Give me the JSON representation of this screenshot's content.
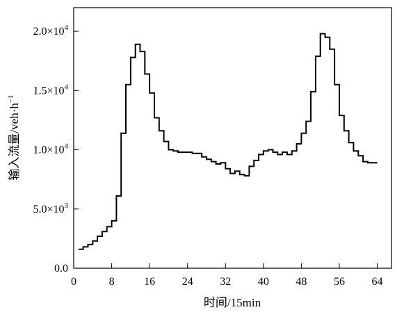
{
  "chart_data": {
    "type": "line",
    "style": "step",
    "title": "",
    "xlabel": "时间/15min",
    "ylabel": "输入流量/veh·h",
    "ylabel_superscript": "−1",
    "xlim": [
      0,
      67
    ],
    "ylim": [
      0,
      22000
    ],
    "x_ticks": [
      {
        "value": 0,
        "label": "0"
      },
      {
        "value": 8,
        "label": "8"
      },
      {
        "value": 16,
        "label": "16"
      },
      {
        "value": 24,
        "label": "24"
      },
      {
        "value": 32,
        "label": "32"
      },
      {
        "value": 40,
        "label": "40"
      },
      {
        "value": 48,
        "label": "48"
      },
      {
        "value": 56,
        "label": "56"
      },
      {
        "value": 64,
        "label": "64"
      }
    ],
    "y_ticks": [
      {
        "value": 0,
        "mantissa": "0.0",
        "exponent": ""
      },
      {
        "value": 5000,
        "mantissa": "5.0×10",
        "exponent": "3"
      },
      {
        "value": 10000,
        "mantissa": "1.0×10",
        "exponent": "4"
      },
      {
        "value": 15000,
        "mantissa": "1.5×10",
        "exponent": "4"
      },
      {
        "value": 20000,
        "mantissa": "2.0×10",
        "exponent": "4"
      }
    ],
    "grid": false,
    "line_color": "#000000",
    "series": [
      {
        "x": [
          1,
          2,
          3,
          4,
          5,
          6,
          7,
          8,
          9,
          10,
          11,
          12,
          13,
          14,
          15,
          16,
          17,
          18,
          19,
          20,
          21,
          22,
          23,
          24,
          25,
          26,
          27,
          28,
          29,
          30,
          31,
          32,
          33,
          34,
          35,
          36,
          37,
          38,
          39,
          40,
          41,
          42,
          43,
          44,
          45,
          46,
          47,
          48,
          49,
          50,
          51,
          52,
          53,
          54,
          55,
          56,
          57,
          58,
          59,
          60,
          61,
          62,
          63,
          64
        ],
        "y": [
          1600,
          1800,
          2000,
          2300,
          2700,
          3100,
          3500,
          4000,
          6100,
          11400,
          15500,
          17800,
          18900,
          18300,
          16400,
          14800,
          12700,
          11600,
          10700,
          10000,
          9900,
          9800,
          9800,
          9800,
          9700,
          9700,
          9400,
          9200,
          9000,
          8800,
          8900,
          8400,
          8000,
          8200,
          7900,
          7800,
          8600,
          9100,
          9600,
          9900,
          10000,
          9800,
          9600,
          9800,
          9600,
          9900,
          10500,
          11400,
          12400,
          14900,
          17900,
          19800,
          19500,
          18500,
          15500,
          12900,
          11600,
          10600,
          9900,
          9500,
          9000,
          8900,
          8900,
          8900
        ]
      }
    ]
  }
}
